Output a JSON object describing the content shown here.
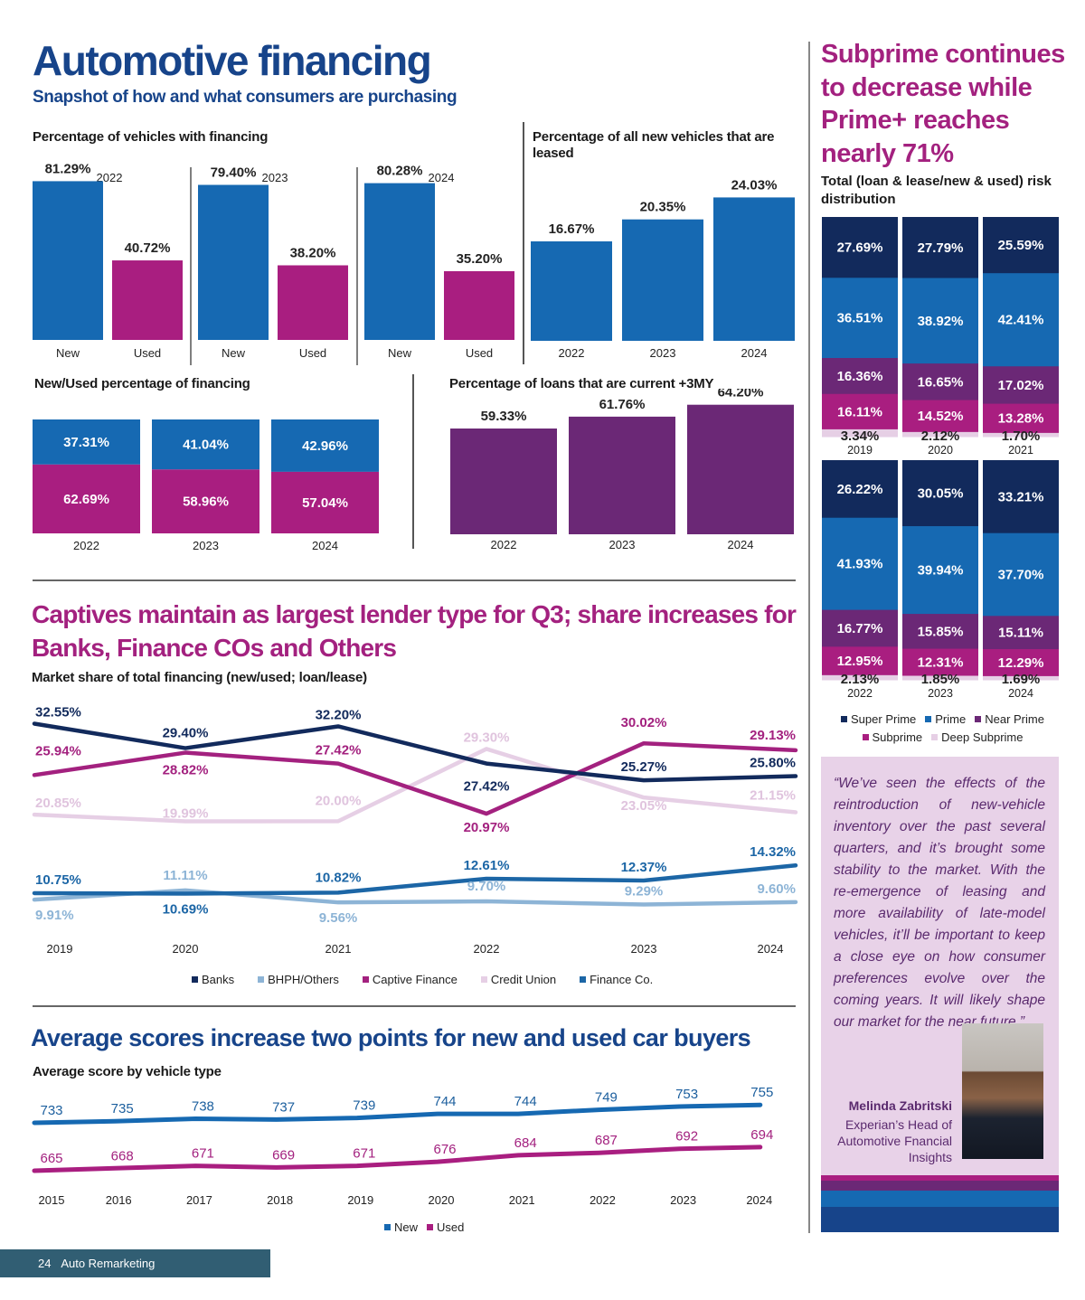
{
  "header": {
    "title": "Automotive financing",
    "subtitle": "Snapshot of how and what consumers are purchasing"
  },
  "colors": {
    "new_blue": "#1669b2",
    "used_magenta": "#a91e80",
    "current_purple": "#6b2876",
    "super_prime": "#122a5c",
    "prime": "#1669b2",
    "near_prime": "#6b2876",
    "subprime": "#a91e80",
    "deep_subprime": "#e6cfe5",
    "banks": "#122a5c",
    "bhph": "#8db4d6",
    "captive": "#a3217f",
    "credit_union": "#e6cfe5",
    "finance_co": "#1c66a6",
    "quote_bg": "#e8d2e8",
    "footer_bg": "#315e73"
  },
  "chart_data": [
    {
      "id": "financing",
      "type": "bar",
      "title": "Percentage of vehicles with financing",
      "groups": [
        "2022",
        "2023",
        "2024"
      ],
      "categories": [
        "New",
        "Used"
      ],
      "series": [
        {
          "name": "New",
          "values": [
            81.29,
            79.4,
            80.28
          ],
          "labels": [
            "81.29%",
            "79.40%",
            "80.28%"
          ]
        },
        {
          "name": "Used",
          "values": [
            40.72,
            38.2,
            35.2
          ],
          "labels": [
            "40.72%",
            "38.20%",
            "35.20%"
          ]
        }
      ],
      "ylim": [
        0,
        100
      ]
    },
    {
      "id": "leased",
      "type": "bar",
      "title": "Percentage of all new vehicles that are leased",
      "categories": [
        "2022",
        "2023",
        "2024"
      ],
      "values": [
        16.67,
        20.35,
        24.03
      ],
      "labels": [
        "16.67%",
        "20.35%",
        "24.03%"
      ]
    },
    {
      "id": "new_used_share",
      "type": "bar",
      "stacked": true,
      "title": "New/Used percentage of financing",
      "categories": [
        "2022",
        "2023",
        "2024"
      ],
      "series": [
        {
          "name": "New",
          "values": [
            37.31,
            41.04,
            42.96
          ],
          "labels": [
            "37.31%",
            "41.04%",
            "42.96%"
          ]
        },
        {
          "name": "Used",
          "values": [
            62.69,
            58.96,
            57.04
          ],
          "labels": [
            "62.69%",
            "58.96%",
            "57.04%"
          ]
        }
      ]
    },
    {
      "id": "current_loans",
      "type": "bar",
      "title": "Percentage of loans that are current +3MY",
      "categories": [
        "2022",
        "2023",
        "2024"
      ],
      "values": [
        59.33,
        61.76,
        64.2
      ],
      "labels": [
        "59.33%",
        "61.76%",
        "64.20%"
      ]
    },
    {
      "id": "risk_distribution",
      "type": "bar",
      "stacked": true,
      "title": "Total (loan & lease/new & used) risk distribution",
      "categories": [
        "2019",
        "2020",
        "2021",
        "2022",
        "2023",
        "2024"
      ],
      "series": [
        {
          "name": "Super Prime",
          "values": [
            27.69,
            27.79,
            25.59,
            26.22,
            30.05,
            33.21
          ]
        },
        {
          "name": "Prime",
          "values": [
            36.51,
            38.92,
            42.41,
            41.93,
            39.94,
            37.7
          ]
        },
        {
          "name": "Near Prime",
          "values": [
            16.36,
            16.65,
            17.02,
            16.77,
            15.85,
            15.11
          ]
        },
        {
          "name": "Subprime",
          "values": [
            16.11,
            14.52,
            13.28,
            12.95,
            12.31,
            12.29
          ]
        },
        {
          "name": "Deep Subprime",
          "values": [
            3.34,
            2.12,
            1.7,
            2.13,
            1.85,
            1.69
          ]
        }
      ],
      "legend": [
        "Super Prime",
        "Prime",
        "Near Prime",
        "Subprime",
        "Deep Subprime"
      ]
    },
    {
      "id": "market_share",
      "type": "line",
      "title": "Market share of total financing (new/used; loan/lease)",
      "x": [
        "2019",
        "2020",
        "2021",
        "2022",
        "2023",
        "2024"
      ],
      "series": [
        {
          "name": "Banks",
          "values": [
            32.55,
            29.4,
            32.2,
            27.42,
            25.27,
            25.8
          ]
        },
        {
          "name": "BHPH/Others",
          "values": [
            9.91,
            11.11,
            9.56,
            9.7,
            9.29,
            9.6
          ]
        },
        {
          "name": "Captive Finance",
          "values": [
            25.94,
            28.82,
            27.42,
            20.97,
            30.02,
            29.13
          ]
        },
        {
          "name": "Credit Union",
          "values": [
            20.85,
            19.99,
            20.0,
            29.3,
            23.05,
            21.15
          ]
        },
        {
          "name": "Finance Co.",
          "values": [
            10.75,
            10.69,
            10.82,
            12.61,
            12.37,
            14.32
          ]
        }
      ],
      "legend_position": "bottom"
    },
    {
      "id": "avg_scores",
      "type": "line",
      "title": "Average score by vehicle type",
      "x": [
        "2015",
        "2016",
        "2017",
        "2018",
        "2019",
        "2020",
        "2021",
        "2022",
        "2023",
        "2024"
      ],
      "series": [
        {
          "name": "New",
          "values": [
            733,
            735,
            738,
            737,
            739,
            744,
            744,
            749,
            753,
            755
          ]
        },
        {
          "name": "Used",
          "values": [
            665,
            668,
            671,
            669,
            671,
            676,
            684,
            687,
            692,
            694
          ]
        }
      ],
      "legend_position": "bottom"
    }
  ],
  "sections": {
    "lender_title": "Captives maintain as largest lender type for Q3; share increases for Banks, Finance COs and Others",
    "scores_title": "Average scores increase two points for new and used car buyers"
  },
  "sidebar": {
    "title": "Subprime continues to decrease while Prime+ reaches nearly 71%",
    "subtitle": "Total (loan & lease/new & used) risk distribution",
    "quote": "“We’ve seen the effects of the reintroduction of new-vehicle inventory over the past several quarters, and it’s brought some stability to the market.  With the re-emergence of leasing and more availability of late-model vehicles, it’ll be important to keep a close eye on how consumer preferences evolve over the coming years. It will likely shape our market for the near future.”",
    "person_name": "Melinda Zabritski",
    "person_role": "Experian’s Head of Automotive Fnancial Insights"
  },
  "footer": {
    "page_number": "24",
    "publication": "Auto Remarketing"
  }
}
